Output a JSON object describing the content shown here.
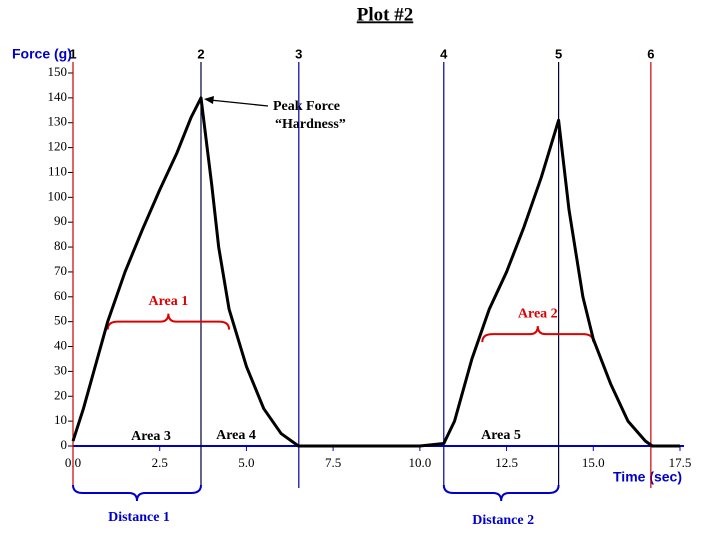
{
  "chart_data": {
    "type": "line",
    "title": "Plot #2",
    "x_label": "Time (sec)",
    "y_label": "Force (g)",
    "x": [
      0,
      0.3,
      0.6,
      1.0,
      1.5,
      2.0,
      2.5,
      3.0,
      3.4,
      3.69,
      4.0,
      4.2,
      4.5,
      5.0,
      5.5,
      6.0,
      6.5,
      8.0,
      10.0,
      10.69,
      11.0,
      11.5,
      12.0,
      12.5,
      13.0,
      13.5,
      14.0,
      14.3,
      14.7,
      15.0,
      15.5,
      16.0,
      16.5,
      16.7,
      17.5
    ],
    "series": [
      {
        "color": "#000000",
        "values": [
          2,
          15,
          30,
          50,
          70,
          87,
          103,
          118,
          132,
          140,
          105,
          80,
          55,
          32,
          15,
          5,
          0,
          0,
          0,
          1,
          10,
          35,
          55,
          70,
          88,
          108,
          131,
          95,
          60,
          43,
          25,
          10,
          2,
          0,
          0
        ]
      }
    ],
    "xlim": [
      0,
      17.5
    ],
    "xticks": [
      {
        "value": 0,
        "label": "0.0"
      },
      2.5,
      {
        "value": 5,
        "label": "5.0"
      },
      7.5,
      {
        "value": 10,
        "label": "10.0"
      },
      12.5,
      {
        "value": 15,
        "label": "15.0"
      },
      17.5
    ],
    "ylim": [
      0,
      150
    ],
    "yticks": [
      0,
      10,
      20,
      30,
      40,
      50,
      60,
      70,
      80,
      90,
      100,
      110,
      120,
      130,
      140,
      150
    ],
    "markers": [
      {
        "label": "1",
        "x": 0,
        "color": "#cc0000"
      },
      {
        "label": "2",
        "x": 3.69,
        "color": "#000033"
      },
      {
        "label": "3",
        "x": 6.51,
        "color": "#000099"
      },
      {
        "label": "4",
        "x": 10.69,
        "color": "#000099"
      },
      {
        "label": "5",
        "x": 14.0,
        "color": "#000033"
      },
      {
        "label": "6",
        "x": 16.66,
        "color": "#cc0000"
      }
    ],
    "areas": [
      {
        "label": "Area 1",
        "x": [
          1.0,
          4.5
        ],
        "y": 50,
        "color": "#dd0000"
      },
      {
        "label": "Area 2",
        "x": [
          11.8,
          15.0
        ],
        "y": 45,
        "color": "#dd0000"
      }
    ],
    "distances": [
      {
        "label": "Distance 1",
        "x": [
          0,
          3.69
        ],
        "color": "#0000cc"
      },
      {
        "label": "Distance 2",
        "x": [
          10.69,
          14.0
        ],
        "color": "#0000cc"
      }
    ],
    "area_labels": [
      "Area 3",
      "Area 4",
      "Area 5"
    ],
    "peak_annotation": [
      "Peak Force",
      "“Hardness”"
    ]
  }
}
